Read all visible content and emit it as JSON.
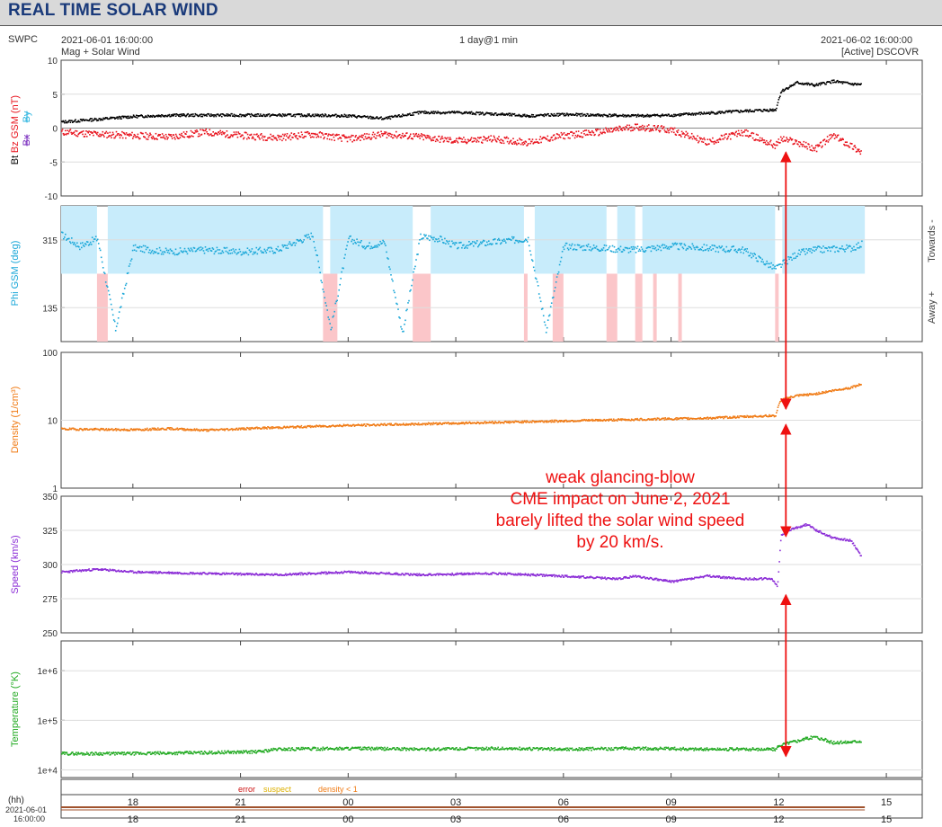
{
  "header": {
    "title": "REAL TIME SOLAR WIND"
  },
  "info": {
    "source": "SWPC",
    "start_time": "2021-06-01 16:00:00",
    "product": "Mag + Solar Wind",
    "resolution": "1 day@1 min",
    "end_time": "2021-06-02 16:00:00",
    "spacecraft": "[Active] DSCOVR"
  },
  "annotation": {
    "lines": [
      "weak glancing-blow",
      "CME impact on June 2, 2021",
      "barely lifted the solar wind speed",
      "by 20 km/s."
    ]
  },
  "legend": {
    "error": "error",
    "suspect": "suspect",
    "density": "density < 1"
  },
  "bottom_axis": {
    "hh_label": "(hh)",
    "date_label": "2021-06-01",
    "time_label": "16:00:00"
  },
  "colors": {
    "bt": "#000000",
    "bz": "#e8141e",
    "bx": "#7b2fbf",
    "by": "#2fb5e0",
    "phi": "#1aa7d8",
    "phi_toward_fill": "#c8ecfb",
    "phi_away_fill": "#fbc6c9",
    "density": "#f07b15",
    "speed": "#8a2bd6",
    "temperature": "#22aa22",
    "annotation": "#ee1111",
    "header_title": "#1a3a7a"
  },
  "chart_data": [
    {
      "type": "line",
      "title": "",
      "ylabel": {
        "bt": "Bt",
        "bz": "Bz GSM (nT)",
        "bx": "Bx",
        "by": "By"
      },
      "ylim": [
        -10,
        10
      ],
      "yticks": [
        "10",
        "5",
        "0",
        "-5",
        "-10"
      ],
      "series": [
        {
          "name": "Bt",
          "x": [
            16.0,
            17.0,
            18.0,
            19.0,
            20.0,
            21.0,
            22.0,
            23.0,
            24.0,
            25.0,
            26.0,
            27.0,
            28.0,
            29.0,
            30.0,
            31.0,
            32.0,
            33.0,
            34.0,
            35.0,
            35.9,
            36.05,
            36.5,
            37.0,
            37.5,
            38.0,
            38.3
          ],
          "y": [
            1.0,
            1.4,
            1.8,
            2.0,
            2.0,
            2.0,
            2.0,
            2.0,
            1.9,
            1.5,
            2.4,
            2.4,
            2.2,
            1.9,
            2.1,
            2.0,
            1.9,
            2.0,
            2.3,
            2.6,
            2.8,
            5.5,
            6.8,
            6.4,
            7.0,
            6.6,
            6.5
          ]
        },
        {
          "name": "Bz GSM",
          "x": [
            16.0,
            17.0,
            18.0,
            19.0,
            20.0,
            21.0,
            22.0,
            23.0,
            24.0,
            25.0,
            26.0,
            27.0,
            28.0,
            29.0,
            30.0,
            31.0,
            32.0,
            33.0,
            34.0,
            35.0,
            35.9,
            36.05,
            36.5,
            37.0,
            37.5,
            38.0,
            38.3
          ],
          "y": [
            -0.5,
            -0.8,
            -1.0,
            -1.2,
            -0.5,
            -1.0,
            -1.3,
            -0.8,
            -1.5,
            -0.8,
            -1.2,
            -1.8,
            -1.5,
            -2.0,
            -1.0,
            -0.5,
            0.3,
            -0.2,
            -2.0,
            -0.5,
            -2.5,
            -1.5,
            -2.0,
            -3.0,
            -1.0,
            -2.5,
            -3.5
          ]
        }
      ]
    },
    {
      "type": "scatter",
      "title": "",
      "ylabel": "Phi GSM (deg)",
      "right_labels": {
        "toward": "Towards -",
        "away": "Away +"
      },
      "ylim": [
        45,
        405
      ],
      "yticks": [
        "315",
        "135"
      ],
      "series": [
        {
          "name": "Phi GSM",
          "x": [
            16.0,
            16.5,
            17.0,
            17.5,
            18.0,
            19.0,
            20.0,
            21.0,
            22.0,
            23.0,
            23.5,
            24.0,
            24.5,
            25.0,
            25.5,
            26.0,
            26.5,
            27.0,
            28.0,
            29.0,
            29.5,
            30.0,
            31.0,
            32.0,
            33.0,
            34.0,
            35.0,
            35.9,
            36.5,
            37.0,
            38.0,
            38.3
          ],
          "y": [
            330,
            300,
            320,
            80,
            295,
            285,
            290,
            285,
            290,
            330,
            80,
            320,
            300,
            310,
            70,
            325,
            320,
            300,
            310,
            320,
            80,
            300,
            295,
            290,
            300,
            295,
            290,
            240,
            280,
            290,
            295,
            305
          ]
        }
      ],
      "shading": {
        "toward_band": [
          225,
          405
        ],
        "away_band": [
          45,
          225
        ],
        "toward_intervals": [
          [
            16.0,
            17.0
          ],
          [
            17.3,
            23.3
          ],
          [
            23.5,
            25.8
          ],
          [
            26.3,
            28.9
          ],
          [
            29.2,
            31.2
          ],
          [
            31.5,
            32.0
          ],
          [
            32.2,
            35.9
          ],
          [
            36.1,
            38.4
          ]
        ],
        "away_intervals": [
          [
            17.0,
            17.3
          ],
          [
            23.3,
            23.7
          ],
          [
            25.8,
            26.3
          ],
          [
            28.9,
            29.0
          ],
          [
            29.7,
            30.0
          ],
          [
            31.2,
            31.5
          ],
          [
            32.0,
            32.2
          ],
          [
            32.5,
            32.6
          ],
          [
            33.2,
            33.3
          ],
          [
            35.9,
            36.0
          ]
        ]
      }
    },
    {
      "type": "line",
      "title": "",
      "ylabel": "Density (1/cm³)",
      "yscale": "log",
      "ylim": [
        1,
        100
      ],
      "yticks": [
        "100",
        "10",
        "1"
      ],
      "series": [
        {
          "name": "Density",
          "x": [
            16.0,
            18.0,
            19.0,
            20.0,
            22.0,
            24.0,
            26.0,
            28.0,
            30.0,
            32.0,
            34.0,
            35.9,
            36.05,
            36.5,
            37.0,
            37.5,
            38.0,
            38.3
          ],
          "y": [
            7.6,
            7.4,
            7.7,
            7.3,
            8.0,
            8.6,
            9.0,
            9.5,
            10.0,
            10.5,
            11.0,
            12.0,
            20.5,
            23.5,
            25.0,
            28.0,
            31.0,
            35.0
          ]
        }
      ]
    },
    {
      "type": "line",
      "title": "",
      "ylabel": "Speed (km/s)",
      "ylim": [
        250,
        350
      ],
      "yticks": [
        "350",
        "325",
        "300",
        "275",
        "250"
      ],
      "series": [
        {
          "name": "Speed",
          "x": [
            16.0,
            17.0,
            18.0,
            20.0,
            22.0,
            24.0,
            26.0,
            28.0,
            30.0,
            31.5,
            32.0,
            33.0,
            34.0,
            35.0,
            35.8,
            35.95,
            36.05,
            36.3,
            36.8,
            37.0,
            37.5,
            38.0,
            38.3
          ],
          "y": [
            295,
            297,
            295,
            294,
            293,
            295,
            293,
            294,
            292,
            290,
            292,
            288,
            292,
            290,
            290,
            284,
            322,
            326,
            330,
            326,
            320,
            318,
            306
          ]
        }
      ]
    },
    {
      "type": "line",
      "title": "",
      "ylabel": "Temperature (°K)",
      "yscale": "log",
      "ylim": [
        7000,
        4000000
      ],
      "yticks": [
        "1e+6",
        "1e+5",
        "1e+4"
      ],
      "series": [
        {
          "name": "Temperature",
          "x": [
            16.0,
            18.0,
            20.0,
            21.5,
            22.0,
            24.0,
            26.0,
            28.0,
            30.0,
            32.0,
            34.0,
            35.9,
            36.05,
            36.5,
            37.0,
            37.5,
            38.0,
            38.3
          ],
          "y": [
            22000,
            22000,
            23000,
            24000,
            27000,
            28000,
            27000,
            28000,
            27000,
            28000,
            27000,
            27000,
            33000,
            40000,
            48000,
            36000,
            38000,
            40000
          ]
        }
      ]
    }
  ],
  "time_axis": {
    "xlim_hours": [
      16,
      40
    ],
    "ticks": [
      {
        "hour": 18,
        "label": "18"
      },
      {
        "hour": 21,
        "label": "21"
      },
      {
        "hour": 24,
        "label": "00"
      },
      {
        "hour": 27,
        "label": "03"
      },
      {
        "hour": 30,
        "label": "06"
      },
      {
        "hour": 33,
        "label": "09"
      },
      {
        "hour": 36,
        "label": "12"
      },
      {
        "hour": 39,
        "label": "15"
      }
    ]
  },
  "arrows": [
    {
      "x_hour": 36.2,
      "from_panel": 0,
      "from_value": -2.5,
      "to_panel": 2,
      "to_value": 13
    },
    {
      "x_hour": 36.2,
      "from_panel": 2,
      "from_value": 11,
      "to_panel": 3,
      "to_value": 318
    },
    {
      "x_hour": 36.2,
      "from_panel": 3,
      "from_value": 283,
      "to_panel": 4,
      "to_value": 16000
    }
  ]
}
